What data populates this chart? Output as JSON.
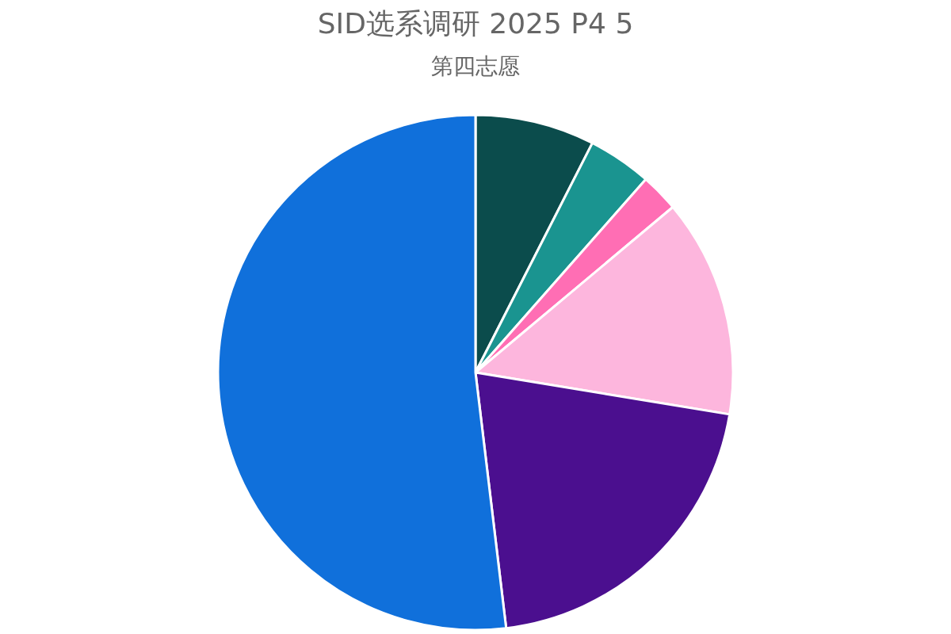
{
  "chart_data": {
    "type": "pie",
    "title": "SID选系调研 2025 P4 5",
    "subtitle": "第四志愿",
    "categories": [
      null,
      null,
      null,
      null,
      null,
      null
    ],
    "values": [
      7.5,
      4,
      2.4,
      13.7,
      20.5,
      51.9
    ],
    "colors": [
      "#0b4c4c",
      "#1a9490",
      "#ff6eb4",
      "#fdb6dd",
      "#4b0f8f",
      "#1070db"
    ]
  }
}
